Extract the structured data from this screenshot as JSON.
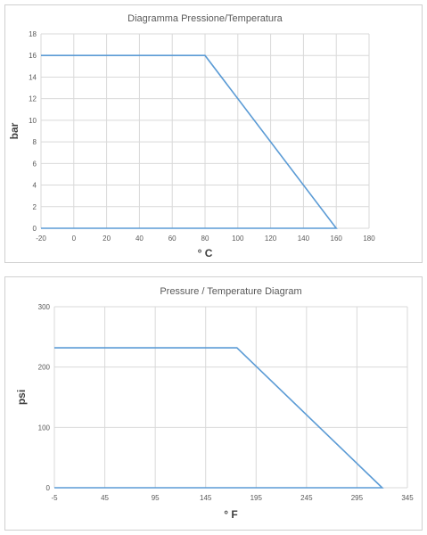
{
  "colors": {
    "series": "#5b9bd5",
    "grid": "#d9d9d9",
    "text": "#595959"
  },
  "chart_data": [
    {
      "type": "line",
      "title": "Diagramma Pressione/Temperatura",
      "xlabel": "° C",
      "ylabel": "bar",
      "xlim": [
        -20,
        180
      ],
      "ylim": [
        0,
        18
      ],
      "xticks": [
        -20,
        0,
        20,
        40,
        60,
        80,
        100,
        120,
        140,
        160,
        180
      ],
      "yticks": [
        0,
        2,
        4,
        6,
        8,
        10,
        12,
        14,
        16,
        18
      ],
      "grid": true,
      "series": [
        {
          "x": [
            -20,
            80,
            160,
            160,
            -20
          ],
          "y": [
            16,
            16,
            0,
            0,
            0
          ]
        }
      ]
    },
    {
      "type": "line",
      "title": "Pressure / Temperature Diagram",
      "xlabel": "° F",
      "ylabel": "psi",
      "xlim": [
        -5,
        345
      ],
      "ylim": [
        0,
        300
      ],
      "xticks": [
        -5,
        45,
        95,
        145,
        195,
        245,
        295,
        345
      ],
      "yticks": [
        0,
        100,
        200,
        300
      ],
      "grid": true,
      "series": [
        {
          "x": [
            -5,
            176,
            320,
            320,
            -5
          ],
          "y": [
            232,
            232,
            0,
            0,
            0
          ]
        }
      ]
    }
  ]
}
